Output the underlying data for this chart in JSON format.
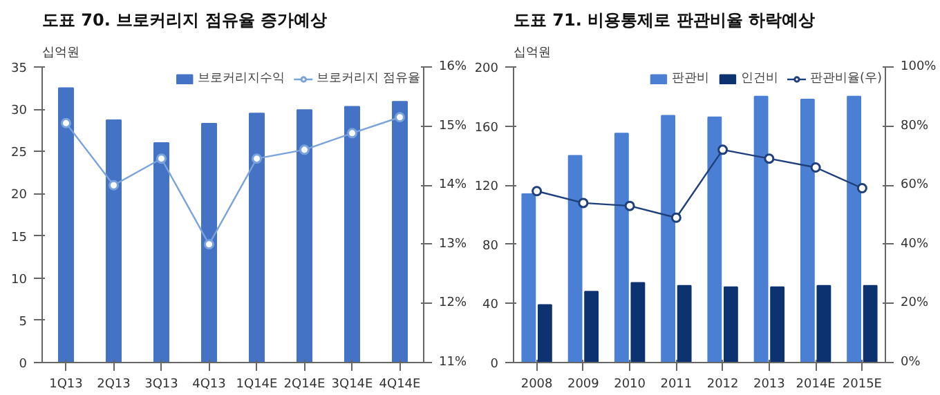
{
  "chart_data": [
    {
      "type": "bar",
      "title": "도표 70. 브로커리지 점유율 증가예상",
      "ylabel": "십억원",
      "categories": [
        "1Q13",
        "2Q13",
        "3Q13",
        "4Q13",
        "1Q14E",
        "2Q14E",
        "3Q14E",
        "4Q14E"
      ],
      "series": [
        {
          "name": "브로커리지수익",
          "color": "#4472c4",
          "values": [
            32.5,
            28.7,
            26.0,
            28.3,
            29.5,
            29.9,
            30.3,
            30.9
          ]
        },
        {
          "name": "브로커리지 점유율",
          "type": "line",
          "axis": "y2",
          "color": "#7aa3dc",
          "marker": "circle",
          "values": [
            15.05,
            14.0,
            14.45,
            13.0,
            14.45,
            14.6,
            14.88,
            15.15
          ]
        }
      ],
      "ylim": [
        0,
        35
      ],
      "yticks": [
        0,
        5,
        10,
        15,
        20,
        25,
        30,
        35
      ],
      "y2lim": [
        11,
        16
      ],
      "y2ticks": [
        {
          "value": 11,
          "label": "11%"
        },
        {
          "value": 12,
          "label": "12%"
        },
        {
          "value": 13,
          "label": "13%"
        },
        {
          "value": 14,
          "label": "14%"
        },
        {
          "value": 15,
          "label": "15%"
        },
        {
          "value": 16,
          "label": "16%"
        }
      ],
      "grid": false,
      "legend": "top"
    },
    {
      "type": "bar",
      "title": "도표 71. 비용통제로 판관비율 하락예상",
      "ylabel": "십억원",
      "categories": [
        "2008",
        "2009",
        "2010",
        "2011",
        "2012",
        "2013",
        "2014E",
        "2015E"
      ],
      "series": [
        {
          "name": "판관비",
          "color": "#4a7fd4",
          "values": [
            114,
            140,
            155,
            167,
            166,
            180,
            178,
            180
          ]
        },
        {
          "name": "인건비",
          "color": "#0d3270",
          "values": [
            39,
            48,
            54,
            52,
            51,
            51,
            52,
            52
          ]
        },
        {
          "name": "판관비율(우)",
          "type": "line",
          "axis": "y2",
          "color": "#1f3f7a",
          "marker": "circle",
          "values": [
            58,
            54,
            53,
            49,
            72,
            69,
            66,
            59
          ]
        }
      ],
      "ylim": [
        0,
        200
      ],
      "yticks": [
        0,
        40,
        80,
        120,
        160,
        200
      ],
      "y2lim": [
        0,
        100
      ],
      "y2ticks": [
        {
          "value": 0,
          "label": "0%"
        },
        {
          "value": 20,
          "label": "20%"
        },
        {
          "value": 40,
          "label": "40%"
        },
        {
          "value": 60,
          "label": "60%"
        },
        {
          "value": 80,
          "label": "80%"
        },
        {
          "value": 100,
          "label": "100%"
        }
      ],
      "grid": false,
      "legend": "top"
    }
  ]
}
